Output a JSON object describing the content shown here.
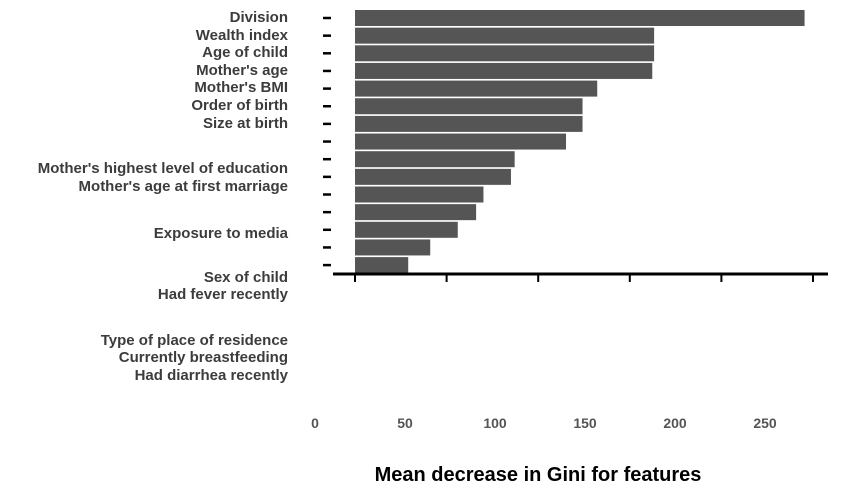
{
  "chart_data": {
    "type": "bar",
    "orientation": "horizontal",
    "categories": [
      "Division",
      "Wealth index",
      "Age of child",
      "Mother's age",
      "Mother's BMI",
      "Order of birth",
      "Size at birth",
      "Mother's highest level of education",
      "Mother's age at first marriage",
      "Exposure to media",
      "Sex of child",
      "Had fever recently",
      "Type of place of residence",
      "Currently breastfeeding",
      "Had diarrhea recently"
    ],
    "values": [
      245,
      163,
      163,
      162,
      132,
      124,
      124,
      115,
      87,
      85,
      70,
      66,
      56,
      41,
      29
    ],
    "xlabel": "Mean decrease in Gini for features",
    "ylabel": "",
    "x_ticks": [
      0,
      50,
      100,
      150,
      200,
      250
    ],
    "grid": false,
    "bar_color": "#555555"
  }
}
